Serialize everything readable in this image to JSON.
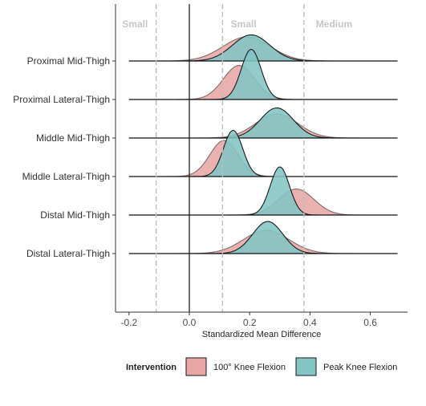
{
  "chart_data": {
    "type": "area",
    "subtype": "ridgeline-density",
    "title": "",
    "xlabel": "Standardized Mean Difference",
    "ylabel": "",
    "xlim": [
      -0.24,
      0.7
    ],
    "x_ticks": [
      -0.2,
      0.0,
      0.2,
      0.4,
      0.6
    ],
    "x_tick_labels": [
      "-0.2",
      "0.0",
      "0.2",
      "0.4",
      "0.6"
    ],
    "categories": [
      "Proximal Mid-Thigh",
      "Proximal Lateral-Thigh",
      "Middle Mid-Thigh",
      "Middle Lateral-Thigh",
      "Distal Mid-Thigh",
      "Distal Lateral-Thigh"
    ],
    "reference_lines": {
      "solid": [
        0.0
      ],
      "dashed": [
        -0.11,
        0.11,
        0.38
      ]
    },
    "effect_bands": [
      {
        "label": "Small",
        "x": -0.18
      },
      {
        "label": "Small",
        "x": 0.18
      },
      {
        "label": "Medium",
        "x": 0.48
      }
    ],
    "legend": {
      "title": "Intervention",
      "position": "bottom",
      "entries": [
        "100° Knee Flexion",
        "Peak Knee Flexion"
      ]
    },
    "series": [
      {
        "name": "100° Knee Flexion",
        "color": "#e8a6a4",
        "distributions": [
          {
            "mean": 0.19,
            "sd": 0.078,
            "peak": 0.6
          },
          {
            "mean": 0.165,
            "sd": 0.052,
            "peak": 0.85
          },
          {
            "mean": 0.29,
            "sd": 0.07,
            "peak": 0.6
          },
          {
            "mean": 0.115,
            "sd": 0.047,
            "peak": 0.9
          },
          {
            "mean": 0.355,
            "sd": 0.058,
            "peak": 0.65
          },
          {
            "mean": 0.255,
            "sd": 0.075,
            "peak": 0.58
          }
        ]
      },
      {
        "name": "Peak Knee Flexion",
        "color": "#82c5c4",
        "distributions": [
          {
            "mean": 0.205,
            "sd": 0.062,
            "peak": 0.65
          },
          {
            "mean": 0.205,
            "sd": 0.033,
            "peak": 1.25
          },
          {
            "mean": 0.29,
            "sd": 0.055,
            "peak": 0.75
          },
          {
            "mean": 0.145,
            "sd": 0.032,
            "peak": 1.15
          },
          {
            "mean": 0.3,
            "sd": 0.032,
            "peak": 1.2
          },
          {
            "mean": 0.26,
            "sd": 0.05,
            "peak": 0.8
          }
        ]
      }
    ]
  }
}
